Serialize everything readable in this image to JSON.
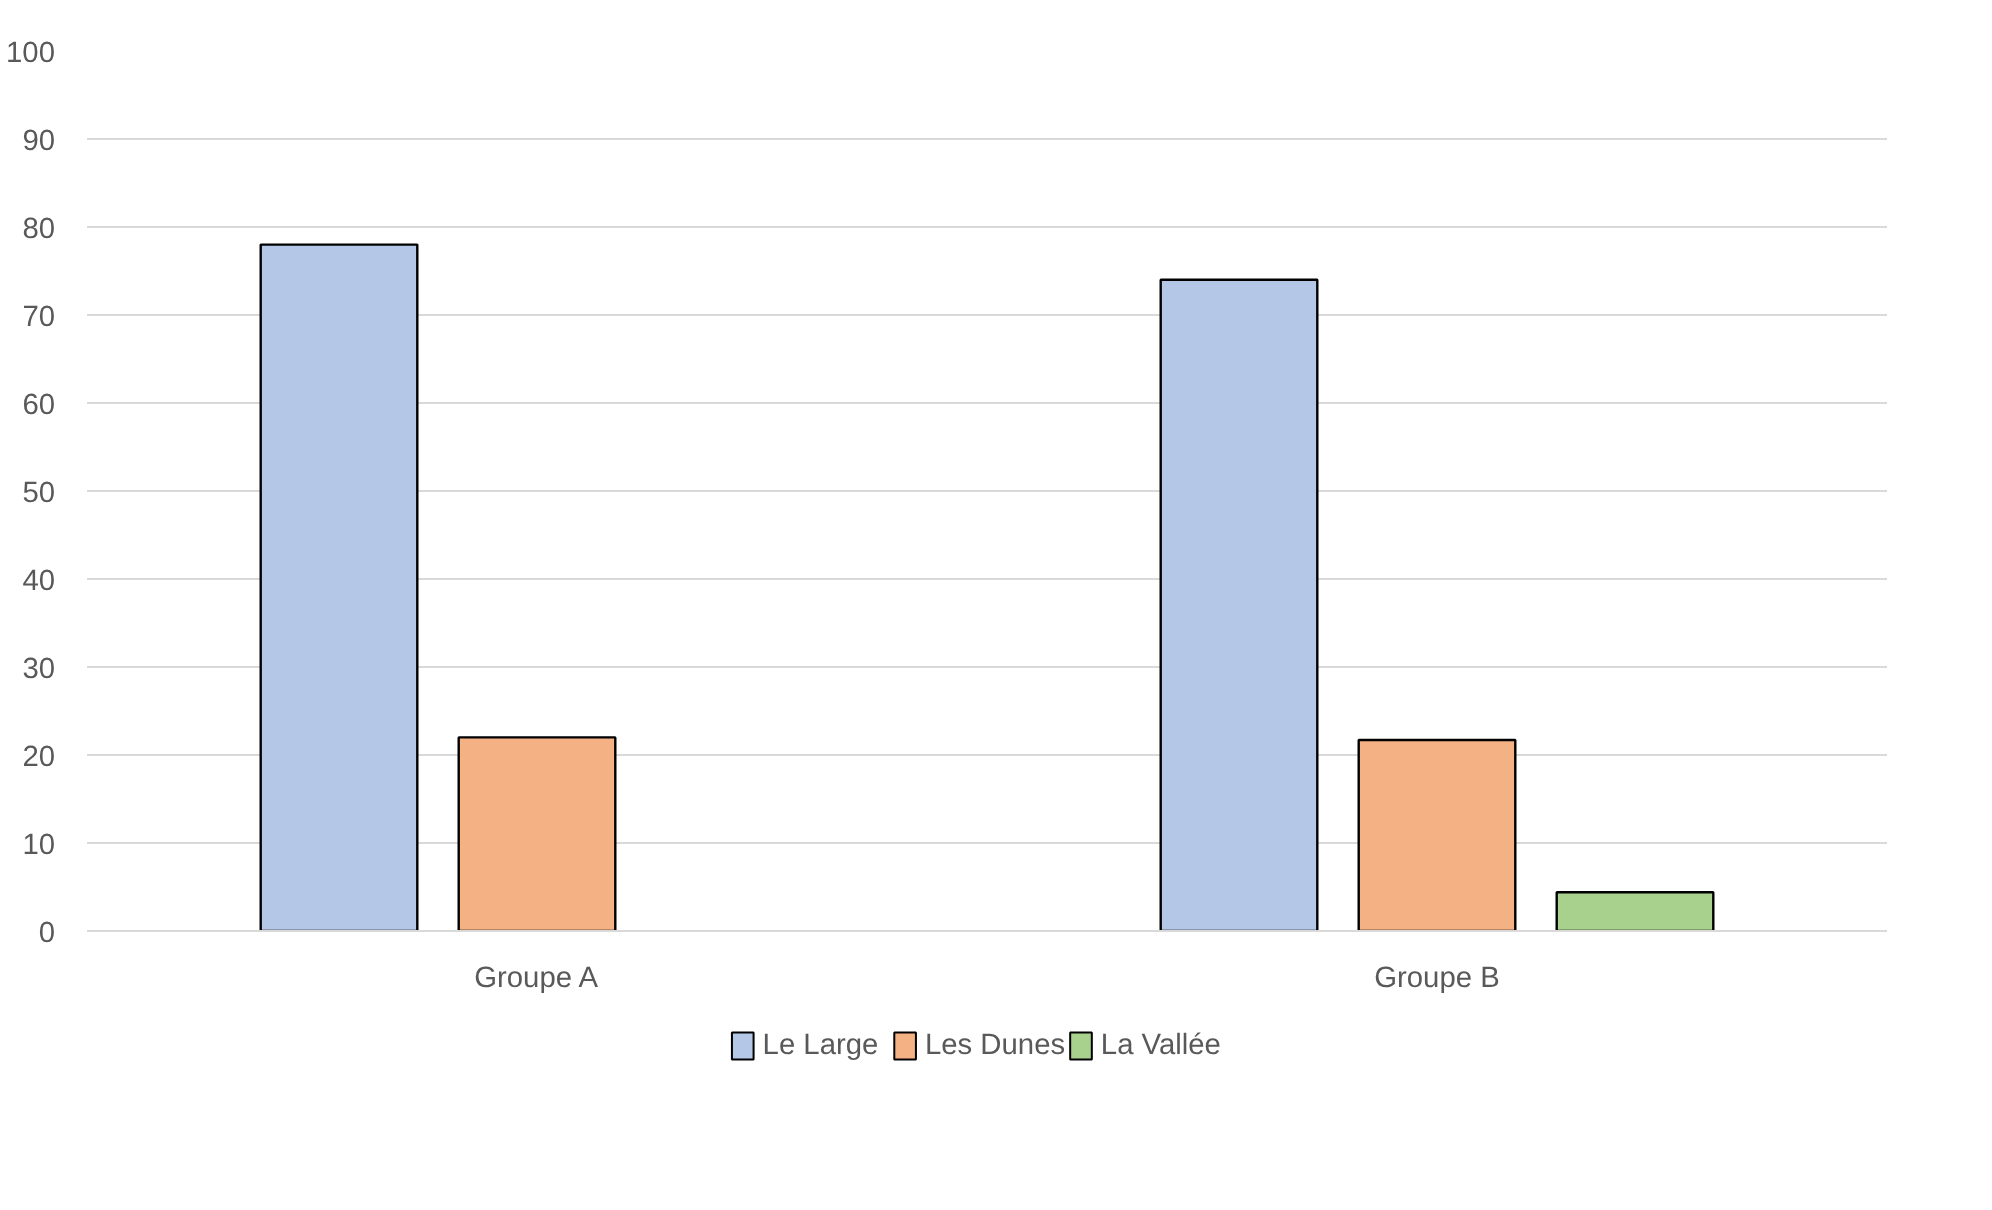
{
  "chart_data": {
    "type": "bar",
    "categories": [
      "Groupe A",
      "Groupe B"
    ],
    "series": [
      {
        "name": "Le Large",
        "color": "#b4c7e7",
        "values": [
          78,
          74
        ]
      },
      {
        "name": "Les Dunes",
        "color": "#f4b183",
        "values": [
          22,
          21.7
        ]
      },
      {
        "name": "La Vallée",
        "color": "#a9d18e",
        "values": [
          null,
          4.4
        ]
      }
    ],
    "ylim": [
      0,
      100
    ],
    "yticks": [
      0,
      10,
      20,
      30,
      40,
      50,
      60,
      70,
      80,
      90,
      100
    ],
    "grid": "y",
    "legend": "bottom"
  }
}
